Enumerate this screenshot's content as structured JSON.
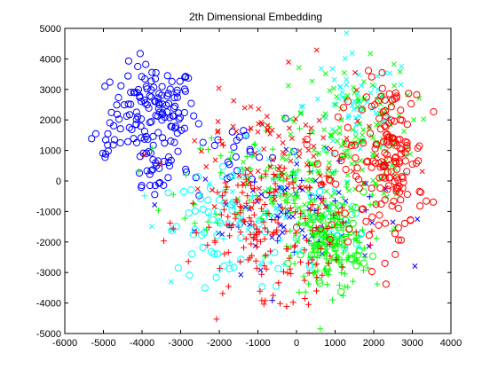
{
  "chart_data": {
    "type": "scatter",
    "title": "2th Dimensional Embedding",
    "xlabel": "",
    "ylabel": "",
    "xlim": [
      -6000,
      4000
    ],
    "ylim": [
      -5000,
      5000
    ],
    "x_ticks": [
      "-6000",
      "-5000",
      "-4000",
      "-3000",
      "-2000",
      "-1000",
      "0",
      "1000",
      "2000",
      "3000",
      "4000"
    ],
    "y_ticks": [
      "5000",
      "4000",
      "3000",
      "2000",
      "1000",
      "0",
      "-1000",
      "-2000",
      "-3000",
      "-4000",
      "-5000"
    ],
    "grid": false,
    "legend": "none",
    "clusters": [
      {
        "color": "#0000ff",
        "marker": "o",
        "cx": -3700,
        "cy": 2300,
        "sx": 550,
        "sy": 750,
        "n": 130
      },
      {
        "color": "#0000ff",
        "marker": "o",
        "cx": -3700,
        "cy": 400,
        "sx": 350,
        "sy": 500,
        "n": 25
      },
      {
        "color": "#0000ff",
        "marker": "o",
        "cx": -1600,
        "cy": 1000,
        "sx": 900,
        "sy": 700,
        "n": 30
      },
      {
        "color": "#0000ff",
        "marker": "x",
        "cx": -200,
        "cy": -1000,
        "sx": 1200,
        "sy": 900,
        "n": 60
      },
      {
        "color": "#0000ff",
        "marker": "+",
        "cx": 300,
        "cy": -1200,
        "sx": 900,
        "sy": 800,
        "n": 25
      },
      {
        "color": "#00ffff",
        "marker": "o",
        "cx": -2100,
        "cy": -1400,
        "sx": 700,
        "sy": 800,
        "n": 55
      },
      {
        "color": "#00ffff",
        "marker": "o",
        "cx": 700,
        "cy": -1800,
        "sx": 800,
        "sy": 900,
        "n": 25
      },
      {
        "color": "#00ffff",
        "marker": "x",
        "cx": 1600,
        "cy": 2500,
        "sx": 700,
        "sy": 800,
        "n": 60
      },
      {
        "color": "#00ffff",
        "marker": "x",
        "cx": -300,
        "cy": -500,
        "sx": 1300,
        "sy": 1100,
        "n": 50
      },
      {
        "color": "#00ffff",
        "marker": "+",
        "cx": -800,
        "cy": -1400,
        "sx": 1100,
        "sy": 900,
        "n": 25
      },
      {
        "color": "#00ff00",
        "marker": "+",
        "cx": 900,
        "cy": -2200,
        "sx": 500,
        "sy": 700,
        "n": 150
      },
      {
        "color": "#00ff00",
        "marker": "+",
        "cx": -600,
        "cy": 100,
        "sx": 1200,
        "sy": 900,
        "n": 90
      },
      {
        "color": "#00ff00",
        "marker": "x",
        "cx": 1400,
        "cy": 1600,
        "sx": 800,
        "sy": 1100,
        "n": 120
      },
      {
        "color": "#00ff00",
        "marker": "x",
        "cx": 500,
        "cy": -700,
        "sx": 900,
        "sy": 900,
        "n": 60
      },
      {
        "color": "#00ff00",
        "marker": "o",
        "cx": 900,
        "cy": -1800,
        "sx": 500,
        "sy": 700,
        "n": 45
      },
      {
        "color": "#ff0000",
        "marker": "o",
        "cx": 2500,
        "cy": 700,
        "sx": 400,
        "sy": 1300,
        "n": 140
      },
      {
        "color": "#ff0000",
        "marker": "o",
        "cx": 1500,
        "cy": 200,
        "sx": 700,
        "sy": 1000,
        "n": 40
      },
      {
        "color": "#ff0000",
        "marker": "+",
        "cx": -800,
        "cy": -1300,
        "sx": 1000,
        "sy": 1100,
        "n": 150
      },
      {
        "color": "#ff0000",
        "marker": "x",
        "cx": -600,
        "cy": 800,
        "sx": 1300,
        "sy": 1200,
        "n": 90
      },
      {
        "color": "#ff0000",
        "marker": "+",
        "cx": -300,
        "cy": -3000,
        "sx": 600,
        "sy": 500,
        "n": 30
      },
      {
        "color": "#0000ff",
        "marker": "o",
        "cx": -4900,
        "cy": 1500,
        "sx": 300,
        "sy": 500,
        "n": 10
      }
    ]
  }
}
